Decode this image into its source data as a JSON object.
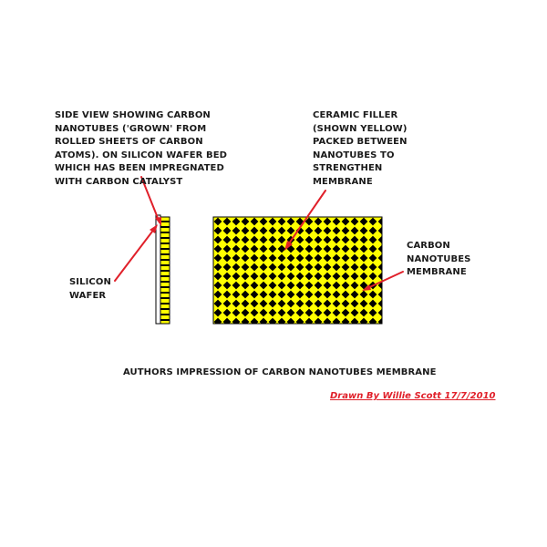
{
  "labels": {
    "side_view": "SIDE VIEW SHOWING CARBON\nNANOTUBES ('GROWN' FROM\nROLLED SHEETS OF CARBON\nATOMS). ON SILICON WAFER BED\nWHICH HAS BEEN IMPREGNATED\nWITH CARBON CATALYST",
    "ceramic_filler": "CERAMIC FILLER\n(SHOWN YELLOW)\nPACKED BETWEEN\nNANOTUBES TO\nSTRENGTHEN\nMEMBRANE",
    "membrane": "CARBON\nNANOTUBES\nMEMBRANE",
    "silicon_wafer": "SILICON\nWAFER"
  },
  "caption": "AUTHORS IMPRESSION OF CARBON NANOTUBES MEMBRANE",
  "credit": "Drawn By Willie Scott 17/7/2010",
  "colors": {
    "filler": "#ffff00",
    "nanotube": "#000000",
    "arrow": "#e0202a",
    "wafer": "#ffffff",
    "credit_text": "#e0202a"
  }
}
